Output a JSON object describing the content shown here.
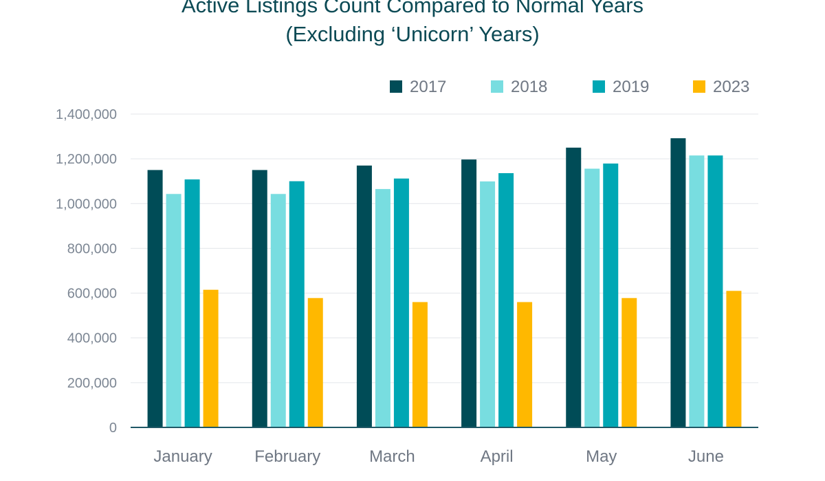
{
  "chart_data": {
    "type": "bar",
    "title": [
      "Active Listings Count Compared to Normal Years",
      "(Excluding ‘Unicorn’ Years)"
    ],
    "xlabel": "",
    "ylabel": "",
    "ylim": [
      0,
      1400000
    ],
    "y_ticks": [
      0,
      200000,
      400000,
      600000,
      800000,
      1000000,
      1200000,
      1400000
    ],
    "y_tick_labels": [
      "0",
      "200,000",
      "400,000",
      "600,000",
      "800,000",
      "1,000,000",
      "1,200,000",
      "1,400,000"
    ],
    "grid": true,
    "legend_position": "top-right",
    "categories": [
      "January",
      "February",
      "March",
      "April",
      "May",
      "June"
    ],
    "series": [
      {
        "name": "2017",
        "color": "#004c57",
        "values": [
          1150000,
          1150000,
          1170000,
          1197000,
          1250000,
          1292000
        ]
      },
      {
        "name": "2018",
        "color": "#78dde0",
        "values": [
          1043000,
          1043000,
          1065000,
          1099000,
          1156000,
          1215000
        ]
      },
      {
        "name": "2019",
        "color": "#00a7b4",
        "values": [
          1108000,
          1100000,
          1112000,
          1136000,
          1179000,
          1215000
        ]
      },
      {
        "name": "2023",
        "color": "#ffb800",
        "values": [
          615000,
          578000,
          560000,
          560000,
          578000,
          610000
        ]
      }
    ]
  }
}
